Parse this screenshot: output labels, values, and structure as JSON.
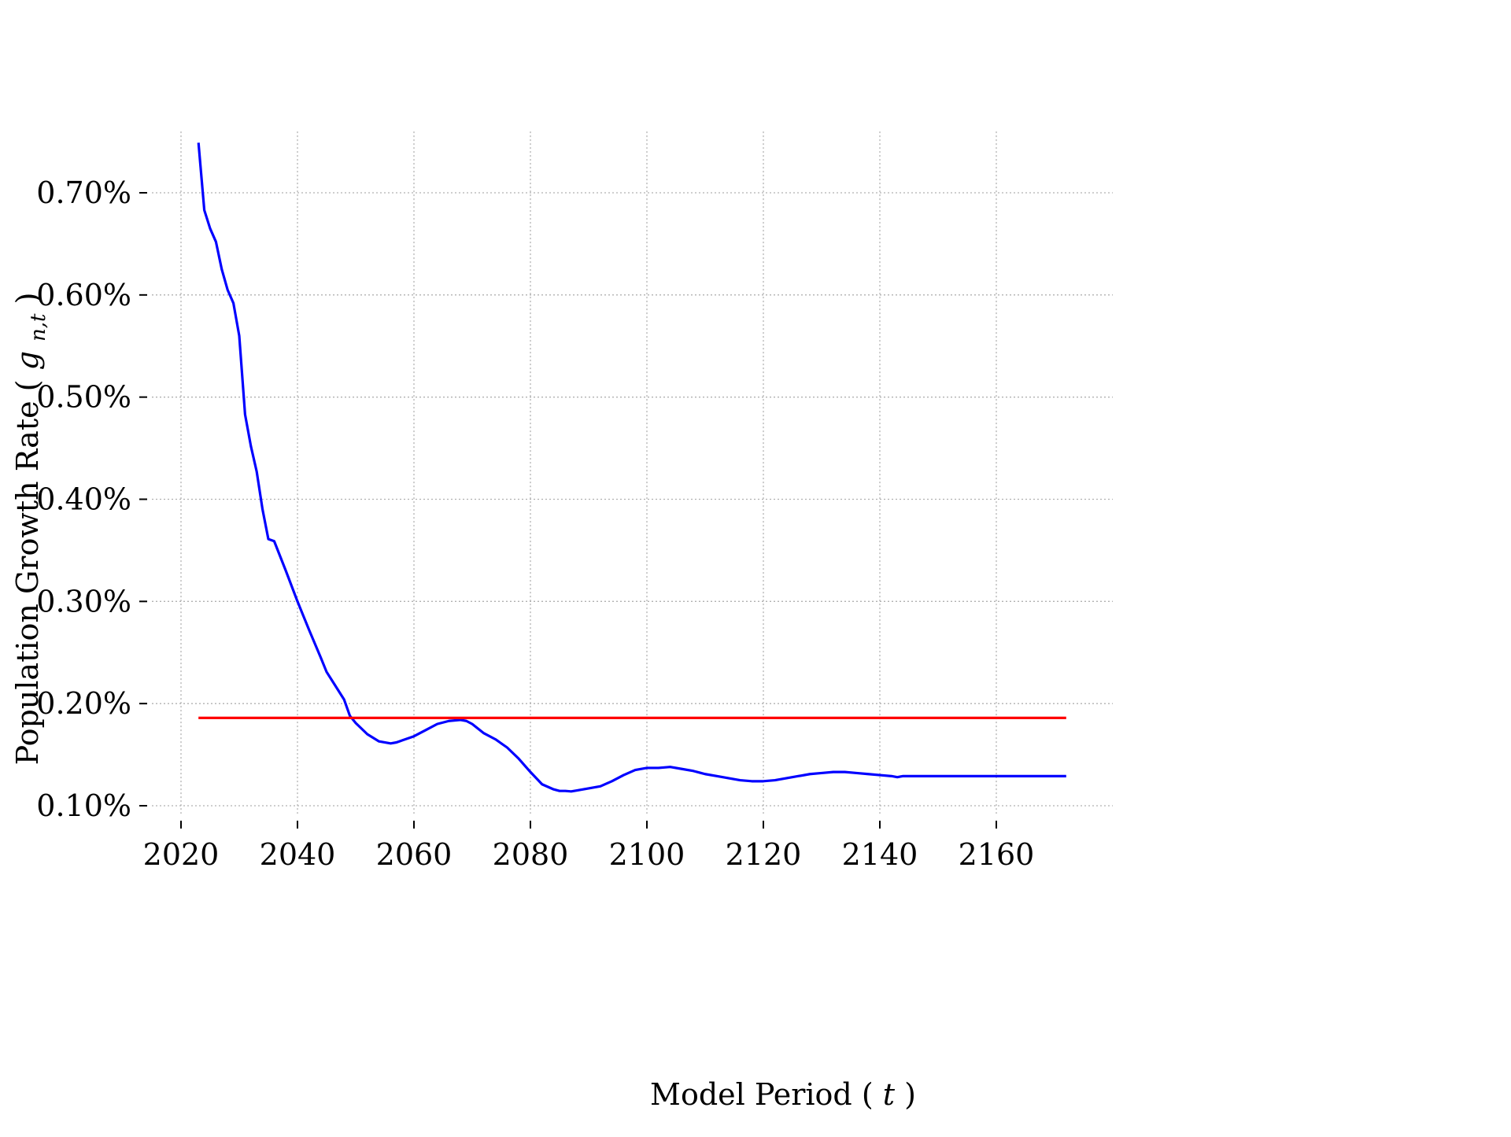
{
  "chart_data": {
    "type": "line",
    "title": "",
    "xlabel": "Model Period",
    "xlabel_var": "t",
    "ylabel": "Population Growth Rate",
    "ylabel_var": "g",
    "ylabel_var_sub": "n,t",
    "xlim": [
      2015,
      2180
    ],
    "ylim": [
      0.09,
      0.76
    ],
    "x_ticks": [
      2020,
      2040,
      2060,
      2080,
      2100,
      2120,
      2140,
      2160
    ],
    "y_ticks": [
      0.1,
      0.2,
      0.3,
      0.4,
      0.5,
      0.6,
      0.7
    ],
    "y_tick_labels": [
      "0.10%",
      "0.20%",
      "0.30%",
      "0.40%",
      "0.50%",
      "0.60%",
      "0.70%"
    ],
    "grid": true,
    "legend": "none",
    "series": [
      {
        "color": "#0000ff",
        "x": [
          2023,
          2024,
          2025,
          2026,
          2027,
          2028,
          2029,
          2030,
          2031,
          2032,
          2033,
          2034,
          2035,
          2036,
          2038,
          2040,
          2042,
          2044,
          2045,
          2046,
          2048,
          2049,
          2050,
          2052,
          2054,
          2056,
          2057,
          2058,
          2060,
          2062,
          2064,
          2066,
          2068,
          2069,
          2070,
          2072,
          2074,
          2076,
          2078,
          2080,
          2082,
          2084,
          2085,
          2086,
          2087,
          2088,
          2090,
          2092,
          2094,
          2096,
          2098,
          2100,
          2102,
          2104,
          2106,
          2108,
          2110,
          2112,
          2114,
          2116,
          2118,
          2120,
          2122,
          2124,
          2126,
          2128,
          2130,
          2132,
          2134,
          2136,
          2138,
          2140,
          2142,
          2143,
          2144,
          2150,
          2160,
          2172
        ],
        "y": [
          0.749,
          0.683,
          0.665,
          0.652,
          0.625,
          0.605,
          0.592,
          0.56,
          0.483,
          0.452,
          0.427,
          0.39,
          0.361,
          0.359,
          0.33,
          0.3,
          0.272,
          0.245,
          0.231,
          0.222,
          0.204,
          0.188,
          0.181,
          0.17,
          0.163,
          0.161,
          0.162,
          0.164,
          0.168,
          0.174,
          0.18,
          0.183,
          0.184,
          0.183,
          0.18,
          0.171,
          0.165,
          0.157,
          0.146,
          0.133,
          0.121,
          0.116,
          0.1145,
          0.1145,
          0.114,
          0.115,
          0.117,
          0.119,
          0.124,
          0.13,
          0.135,
          0.137,
          0.137,
          0.138,
          0.136,
          0.134,
          0.131,
          0.129,
          0.127,
          0.125,
          0.124,
          0.124,
          0.125,
          0.127,
          0.129,
          0.131,
          0.132,
          0.133,
          0.133,
          0.132,
          0.131,
          0.13,
          0.129,
          0.128,
          0.129,
          0.129,
          0.129,
          0.129
        ]
      },
      {
        "color": "#ff0000",
        "x": [
          2023,
          2172
        ],
        "y": [
          0.186,
          0.186
        ]
      }
    ]
  }
}
